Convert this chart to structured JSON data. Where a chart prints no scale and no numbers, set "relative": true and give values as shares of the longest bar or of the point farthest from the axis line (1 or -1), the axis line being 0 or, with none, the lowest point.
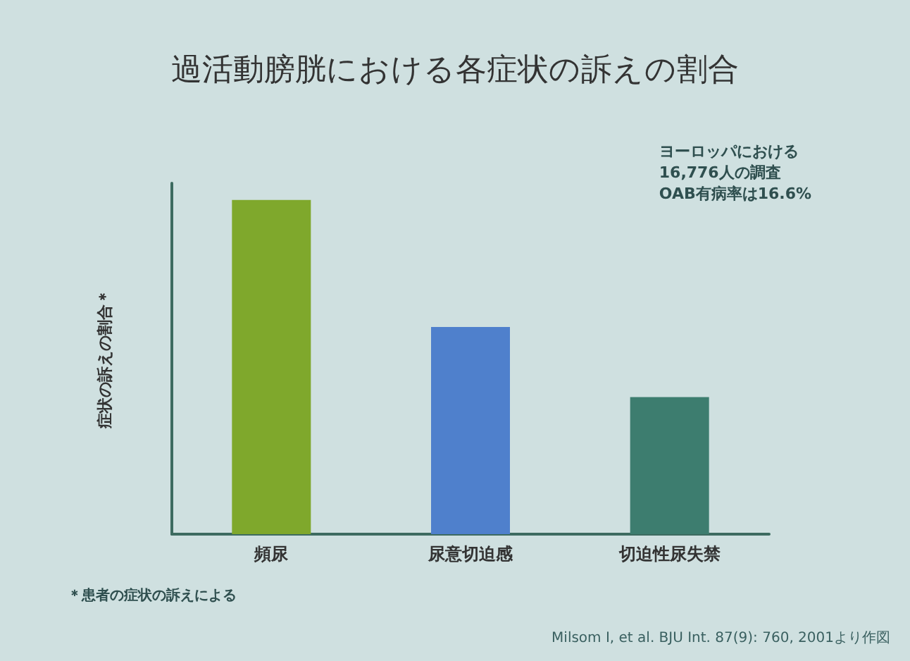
{
  "chart_data": {
    "type": "bar",
    "title": "過活動膀胱における各症状の訴えの割合",
    "ylabel": "症状の訴えの割合＊",
    "categories": [
      "頻尿",
      "尿意切迫感",
      "切迫性尿失禁"
    ],
    "values": [
      1,
      0.62,
      0.41
    ],
    "colors": [
      "#7fa82c",
      "#4f80cc",
      "#3d7d6f"
    ],
    "relative": true,
    "annotations": [
      "ヨーロッパにおける\n16,776人の調査\nOAB有病率は16.6%",
      "＊患者の症状の訴えによる",
      "Milsom I, et al. BJU Int. 87(9): 760, 2001より作図"
    ],
    "data_labels": false
  }
}
